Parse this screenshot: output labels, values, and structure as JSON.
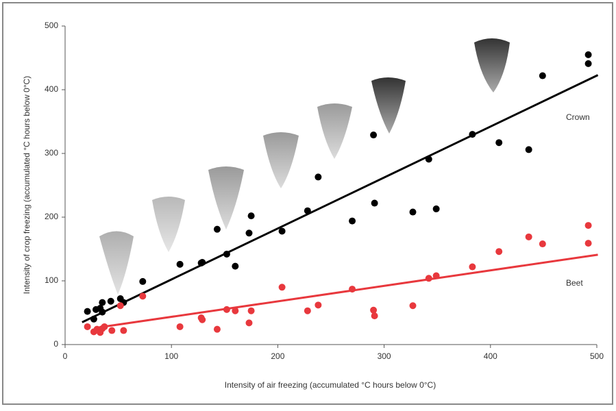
{
  "chart_data": {
    "type": "scatter",
    "xlabel": "Intensity of air freezing (accumulated °C hours below 0°C)",
    "ylabel": "Intensity of crop freezing (accumulated °C hours below 0°C)",
    "xlim": [
      0,
      500
    ],
    "ylim": [
      0,
      500
    ],
    "xticks": [
      0,
      100,
      200,
      300,
      400,
      500
    ],
    "yticks": [
      0,
      100,
      200,
      300,
      400,
      500
    ],
    "grid": false,
    "series": [
      {
        "name": "Crown",
        "color": "#000000",
        "x": [
          21,
          27,
          29,
          33,
          35,
          35,
          43,
          52,
          55,
          73,
          108,
          128,
          129,
          143,
          152,
          160,
          173,
          175,
          204,
          228,
          238,
          270,
          290,
          291,
          327,
          342,
          349,
          383,
          408,
          436,
          449,
          492,
          492
        ],
        "values": [
          52,
          40,
          55,
          57,
          51,
          66,
          68,
          72,
          66,
          99,
          126,
          128,
          129,
          181,
          142,
          123,
          175,
          202,
          178,
          210,
          263,
          194,
          329,
          222,
          208,
          291,
          213,
          330,
          317,
          306,
          422,
          455,
          441
        ],
        "trend_x": [
          16,
          501
        ],
        "trend_values": [
          35,
          423
        ]
      },
      {
        "name": "Beet",
        "color": "#e8383d",
        "x": [
          21,
          27,
          30,
          33,
          35,
          37,
          44,
          52,
          55,
          73,
          108,
          128,
          129,
          143,
          152,
          160,
          173,
          175,
          204,
          228,
          238,
          270,
          290,
          291,
          327,
          342,
          349,
          383,
          408,
          436,
          449,
          492,
          492
        ],
        "values": [
          28,
          20,
          24,
          19,
          25,
          28,
          22,
          61,
          22,
          76,
          28,
          42,
          39,
          24,
          55,
          53,
          34,
          53,
          90,
          53,
          62,
          87,
          54,
          45,
          61,
          104,
          108,
          122,
          146,
          169,
          158,
          187,
          159
        ],
        "trend_x": [
          32,
          501
        ],
        "trend_values": [
          27,
          141
        ]
      }
    ]
  }
}
